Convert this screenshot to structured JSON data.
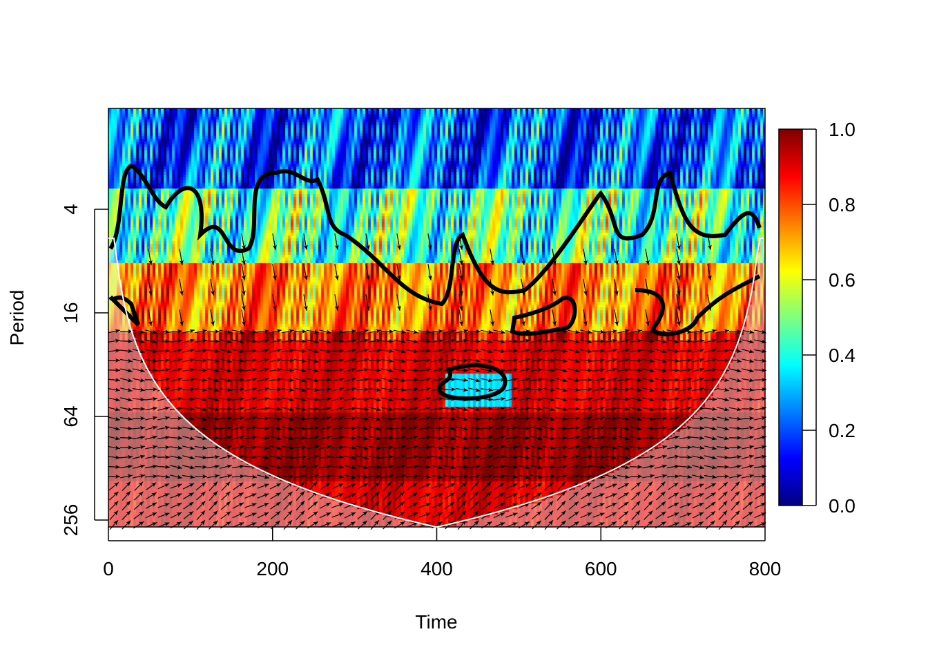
{
  "chart_data": {
    "type": "heatmap",
    "subtype": "wavelet-coherence",
    "title": "",
    "xlabel": "Time",
    "ylabel": "Period",
    "xlim": [
      0,
      800
    ],
    "ylim_period": [
      1,
      280
    ],
    "y_scale": "log2",
    "x_ticks": [
      "0",
      "200",
      "400",
      "600",
      "800"
    ],
    "x_tick_values": [
      0,
      200,
      400,
      600,
      800
    ],
    "y_ticks": [
      "4",
      "16",
      "64",
      "256"
    ],
    "y_tick_values": [
      4,
      16,
      64,
      256
    ],
    "colorbar": {
      "range": [
        0,
        1
      ],
      "ticks": [
        "0.0",
        "0.2",
        "0.4",
        "0.6",
        "0.8",
        "1.0"
      ],
      "tick_values": [
        0,
        0.2,
        0.4,
        0.6,
        0.8,
        1.0
      ],
      "colormap": [
        "#00007F",
        "#0000FF",
        "#007FFF",
        "#00FFFF",
        "#7FFF7F",
        "#FFFF00",
        "#FF7F00",
        "#FF0000",
        "#7F0000"
      ]
    },
    "coherence_by_period_band": [
      {
        "period_range": [
          1,
          3
        ],
        "mean_coherence": 0.2
      },
      {
        "period_range": [
          3,
          8
        ],
        "mean_coherence": 0.45
      },
      {
        "period_range": [
          8,
          20
        ],
        "mean_coherence": 0.75
      },
      {
        "period_range": [
          20,
          60
        ],
        "mean_coherence": 0.9
      },
      {
        "period_range": [
          60,
          150
        ],
        "mean_coherence": 0.97
      },
      {
        "period_range": [
          150,
          280
        ],
        "mean_coherence": 0.9
      }
    ],
    "low_coherence_island": {
      "time_range": [
        410,
        490
      ],
      "period_range": [
        35,
        55
      ],
      "coherence": 0.35
    },
    "phase_arrows": "mostly pointing right (in-phase) at periods above 16",
    "cone_of_influence": "shaded region outside the cone"
  }
}
